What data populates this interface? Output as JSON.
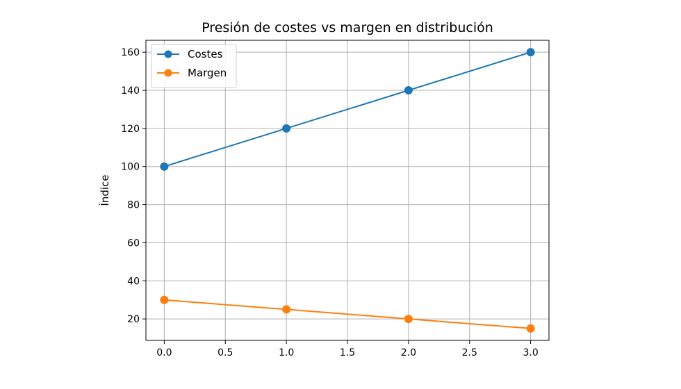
{
  "chart_data": {
    "type": "line",
    "title": "Presión de costes vs margen en distribución",
    "xlabel": "",
    "ylabel": "Índice",
    "x": [
      0,
      1,
      2,
      3
    ],
    "series": [
      {
        "name": "Costes",
        "values": [
          100,
          120,
          140,
          160
        ],
        "color": "#1f77b4"
      },
      {
        "name": "Margen",
        "values": [
          30,
          25,
          20,
          15
        ],
        "color": "#ff7f0e"
      }
    ],
    "xlim": [
      -0.15,
      3.15
    ],
    "ylim": [
      8.75,
      166.25
    ],
    "xticks": [
      0.0,
      0.5,
      1.0,
      1.5,
      2.0,
      2.5,
      3.0
    ],
    "xtick_labels": [
      "0.0",
      "0.5",
      "1.0",
      "1.5",
      "2.0",
      "2.5",
      "3.0"
    ],
    "yticks": [
      20,
      40,
      60,
      80,
      100,
      120,
      140,
      160
    ],
    "ytick_labels": [
      "20",
      "40",
      "60",
      "80",
      "100",
      "120",
      "140",
      "160"
    ],
    "grid": true,
    "legend_position": "top-left",
    "axis_color": "#000000",
    "grid_color": "#b0b0b0"
  }
}
